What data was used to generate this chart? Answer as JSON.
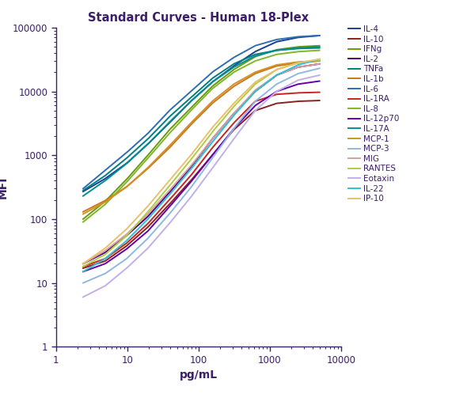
{
  "title": "Standard Curves - Human 18-Plex",
  "xlabel": "pg/mL",
  "ylabel": "MFI",
  "title_color": "#3B1F6A",
  "axis_color": "#3B1F6A",
  "tick_color": "#3B1F6A",
  "background_color": "#ffffff",
  "xlim": [
    1.5,
    10000
  ],
  "ylim": [
    1,
    100000
  ],
  "series": [
    {
      "name": "IL-4",
      "color": "#1a3d8f",
      "x": [
        2.4,
        4.9,
        9.8,
        19.5,
        39,
        78,
        156,
        313,
        625,
        1250,
        2500,
        5000
      ],
      "y": [
        270,
        430,
        750,
        1500,
        3200,
        7000,
        14000,
        25000,
        42000,
        60000,
        70000,
        75000
      ]
    },
    {
      "name": "IL-10",
      "color": "#8B2020",
      "x": [
        2.4,
        4.9,
        9.8,
        19.5,
        39,
        78,
        156,
        313,
        625,
        1250,
        2500,
        5000
      ],
      "y": [
        17,
        22,
        38,
        75,
        170,
        400,
        1000,
        2500,
        5000,
        6500,
        7000,
        7200
      ]
    },
    {
      "name": "IFNg",
      "color": "#6B9A10",
      "x": [
        2.4,
        4.9,
        9.8,
        19.5,
        39,
        78,
        156,
        313,
        625,
        1250,
        2500,
        5000
      ],
      "y": [
        100,
        190,
        420,
        1000,
        2500,
        5500,
        12000,
        22000,
        35000,
        45000,
        50000,
        52000
      ]
    },
    {
      "name": "IL-2",
      "color": "#4B0082",
      "x": [
        2.4,
        4.9,
        9.8,
        19.5,
        39,
        78,
        156,
        313,
        625,
        1250,
        2500,
        5000
      ],
      "y": [
        20,
        30,
        55,
        110,
        260,
        650,
        1800,
        4500,
        10000,
        18000,
        24000,
        27000
      ]
    },
    {
      "name": "TNFa",
      "color": "#008080",
      "x": [
        2.4,
        4.9,
        9.8,
        19.5,
        39,
        78,
        156,
        313,
        625,
        1250,
        2500,
        5000
      ],
      "y": [
        280,
        480,
        900,
        1800,
        4000,
        8000,
        16000,
        27000,
        38000,
        44000,
        47000,
        48000
      ]
    },
    {
      "name": "IL-1b",
      "color": "#C87820",
      "x": [
        2.4,
        4.9,
        9.8,
        19.5,
        39,
        78,
        156,
        313,
        625,
        1250,
        2500,
        5000
      ],
      "y": [
        130,
        195,
        320,
        620,
        1300,
        3000,
        6500,
        12000,
        19000,
        25000,
        28000,
        30000
      ]
    },
    {
      "name": "IL-6",
      "color": "#2E6DB4",
      "x": [
        2.4,
        4.9,
        9.8,
        19.5,
        39,
        78,
        156,
        313,
        625,
        1250,
        2500,
        5000
      ],
      "y": [
        300,
        580,
        1100,
        2200,
        5000,
        10000,
        20000,
        34000,
        52000,
        65000,
        72000,
        75000
      ]
    },
    {
      "name": "IL-1RA",
      "color": "#CC2222",
      "x": [
        2.4,
        4.9,
        9.8,
        19.5,
        39,
        78,
        156,
        313,
        625,
        1250,
        2500,
        5000
      ],
      "y": [
        18,
        24,
        42,
        85,
        200,
        480,
        1300,
        3200,
        7000,
        9000,
        9500,
        9700
      ]
    },
    {
      "name": "IL-8",
      "color": "#7CB82A",
      "x": [
        2.4,
        4.9,
        9.8,
        19.5,
        39,
        78,
        156,
        313,
        625,
        1250,
        2500,
        5000
      ],
      "y": [
        90,
        170,
        380,
        900,
        2200,
        5000,
        11000,
        20000,
        30000,
        38000,
        42000,
        44000
      ]
    },
    {
      "name": "IL-12p70",
      "color": "#6600AA",
      "x": [
        2.4,
        4.9,
        9.8,
        19.5,
        39,
        78,
        156,
        313,
        625,
        1250,
        2500,
        5000
      ],
      "y": [
        15,
        20,
        34,
        65,
        155,
        380,
        1000,
        2600,
        6000,
        10000,
        13000,
        14500
      ]
    },
    {
      "name": "IL-17A",
      "color": "#009090",
      "x": [
        2.4,
        4.9,
        9.8,
        19.5,
        39,
        78,
        156,
        313,
        625,
        1250,
        2500,
        5000
      ],
      "y": [
        230,
        400,
        740,
        1500,
        3300,
        7000,
        14000,
        24000,
        36000,
        44000,
        48000,
        50000
      ]
    },
    {
      "name": "MCP-1",
      "color": "#D49020",
      "x": [
        2.4,
        4.9,
        9.8,
        19.5,
        39,
        78,
        156,
        313,
        625,
        1250,
        2500,
        5000
      ],
      "y": [
        120,
        185,
        320,
        640,
        1400,
        3200,
        7000,
        13000,
        20000,
        26000,
        29000,
        30000
      ]
    },
    {
      "name": "MCP-3",
      "color": "#90B8E0",
      "x": [
        2.4,
        4.9,
        9.8,
        19.5,
        39,
        78,
        156,
        313,
        625,
        1250,
        2500,
        5000
      ],
      "y": [
        10,
        14,
        24,
        50,
        120,
        310,
        900,
        2600,
        7000,
        13000,
        19000,
        23000
      ]
    },
    {
      "name": "MIG",
      "color": "#D8A0A0",
      "x": [
        2.4,
        4.9,
        9.8,
        19.5,
        39,
        78,
        156,
        313,
        625,
        1250,
        2500,
        5000
      ],
      "y": [
        20,
        32,
        58,
        120,
        280,
        680,
        1800,
        4500,
        10500,
        18000,
        24000,
        27000
      ]
    },
    {
      "name": "RANTES",
      "color": "#B0CC40",
      "x": [
        2.4,
        4.9,
        9.8,
        19.5,
        39,
        78,
        156,
        313,
        625,
        1250,
        2500,
        5000
      ],
      "y": [
        18,
        28,
        55,
        130,
        330,
        850,
        2300,
        5800,
        13000,
        22000,
        28000,
        31000
      ]
    },
    {
      "name": "Eotaxin",
      "color": "#C0B0E8",
      "x": [
        2.4,
        4.9,
        9.8,
        19.5,
        39,
        78,
        156,
        313,
        625,
        1250,
        2500,
        5000
      ],
      "y": [
        6,
        9,
        17,
        35,
        85,
        220,
        620,
        1800,
        5000,
        10000,
        15000,
        18000
      ]
    },
    {
      "name": "IL-22",
      "color": "#30C0D0",
      "x": [
        2.4,
        4.9,
        9.8,
        19.5,
        39,
        78,
        156,
        313,
        625,
        1250,
        2500,
        5000
      ],
      "y": [
        15,
        24,
        46,
        100,
        240,
        600,
        1600,
        4200,
        10000,
        18000,
        26000,
        32000
      ]
    },
    {
      "name": "IP-10",
      "color": "#E8C070",
      "x": [
        2.4,
        4.9,
        9.8,
        19.5,
        39,
        78,
        156,
        313,
        625,
        1250,
        2500,
        5000
      ],
      "y": [
        20,
        35,
        70,
        160,
        400,
        1000,
        2700,
        6500,
        14000,
        22000,
        28000,
        32000
      ]
    }
  ]
}
